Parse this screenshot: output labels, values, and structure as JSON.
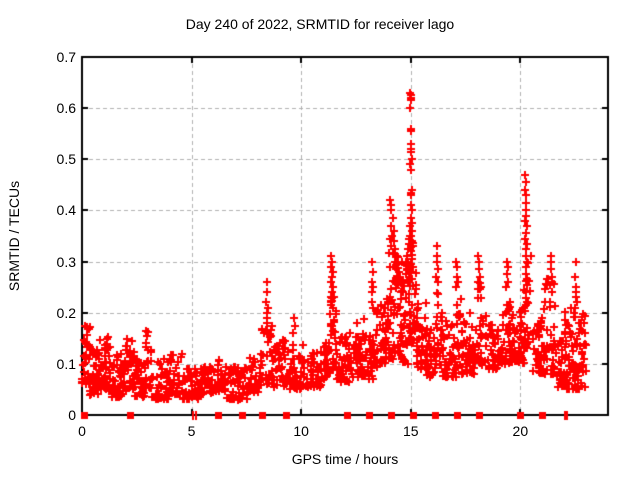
{
  "chart_data": {
    "type": "scatter",
    "title": "Day 240 of 2022, SRMTID for receiver lago",
    "xlabel": "GPS time / hours",
    "ylabel": "SRMTID / TECUs",
    "xlim": [
      0,
      24
    ],
    "ylim": [
      0,
      0.7
    ],
    "xticks": [
      0,
      5,
      10,
      15,
      20
    ],
    "xtick_labels": [
      "0",
      "5",
      "10",
      "15",
      "20"
    ],
    "yticks": [
      0,
      0.1,
      0.2,
      0.3,
      0.4,
      0.5,
      0.6,
      0.7
    ],
    "ytick_labels": [
      "0",
      "0.1",
      "0.2",
      "0.3",
      "0.4",
      "0.5",
      "0.6",
      "0.7"
    ],
    "grid": true,
    "legend": "none",
    "marker": "plus",
    "marker_color": "#ff0000",
    "grid_color": "#b0b0b0",
    "axis_color": "#000000",
    "seed": 2022240,
    "series": [
      {
        "name": "srmtid-dense-band",
        "note": "dense noisy band sampled from envelope segments [x_start,x_end,count,y_low,y_high]",
        "segments": [
          [
            0.0,
            0.35,
            32,
            0.06,
            0.175
          ],
          [
            0.35,
            0.8,
            40,
            0.04,
            0.13
          ],
          [
            0.8,
            1.3,
            45,
            0.05,
            0.16
          ],
          [
            1.3,
            2.0,
            50,
            0.035,
            0.12
          ],
          [
            2.0,
            2.4,
            30,
            0.05,
            0.15
          ],
          [
            2.4,
            2.9,
            35,
            0.035,
            0.11
          ],
          [
            2.9,
            3.2,
            25,
            0.05,
            0.17
          ],
          [
            3.2,
            4.0,
            50,
            0.03,
            0.11
          ],
          [
            4.0,
            4.6,
            38,
            0.04,
            0.12
          ],
          [
            4.6,
            5.3,
            40,
            0.03,
            0.095
          ],
          [
            5.3,
            6.1,
            42,
            0.04,
            0.1
          ],
          [
            6.1,
            6.6,
            30,
            0.045,
            0.115
          ],
          [
            6.6,
            7.6,
            55,
            0.03,
            0.095
          ],
          [
            7.6,
            8.2,
            38,
            0.045,
            0.12
          ],
          [
            8.2,
            8.7,
            30,
            0.06,
            0.18
          ],
          [
            8.7,
            9.4,
            42,
            0.055,
            0.15
          ],
          [
            9.4,
            10.1,
            42,
            0.05,
            0.14
          ],
          [
            10.1,
            10.9,
            48,
            0.055,
            0.125
          ],
          [
            10.9,
            11.3,
            30,
            0.07,
            0.16
          ],
          [
            11.3,
            11.6,
            26,
            0.09,
            0.24
          ],
          [
            11.6,
            12.4,
            52,
            0.065,
            0.16
          ],
          [
            12.4,
            12.9,
            36,
            0.075,
            0.19
          ],
          [
            12.9,
            13.3,
            30,
            0.07,
            0.155
          ],
          [
            13.3,
            13.9,
            42,
            0.09,
            0.22
          ],
          [
            13.9,
            14.55,
            58,
            0.11,
            0.33
          ],
          [
            14.55,
            14.9,
            32,
            0.1,
            0.3
          ],
          [
            14.9,
            15.25,
            36,
            0.14,
            0.35
          ],
          [
            15.25,
            15.7,
            36,
            0.09,
            0.22
          ],
          [
            15.7,
            16.1,
            32,
            0.075,
            0.17
          ],
          [
            16.1,
            16.45,
            26,
            0.09,
            0.25
          ],
          [
            16.45,
            17.05,
            42,
            0.075,
            0.185
          ],
          [
            17.05,
            17.3,
            20,
            0.09,
            0.25
          ],
          [
            17.3,
            18.0,
            46,
            0.08,
            0.2
          ],
          [
            18.0,
            18.25,
            20,
            0.1,
            0.26
          ],
          [
            18.25,
            19.1,
            52,
            0.09,
            0.2
          ],
          [
            19.1,
            19.6,
            36,
            0.1,
            0.27
          ],
          [
            19.6,
            20.15,
            40,
            0.1,
            0.22
          ],
          [
            20.15,
            20.5,
            30,
            0.13,
            0.33
          ],
          [
            20.5,
            21.1,
            42,
            0.08,
            0.2
          ],
          [
            21.1,
            21.6,
            36,
            0.08,
            0.27
          ],
          [
            21.6,
            22.0,
            30,
            0.055,
            0.15
          ],
          [
            22.0,
            22.35,
            32,
            0.05,
            0.23
          ],
          [
            22.35,
            23.0,
            60,
            0.05,
            0.2
          ]
        ]
      },
      {
        "name": "srmtid-peak-points",
        "note": "explicit points of the tall spike columns read off the plot",
        "points": [
          [
            8.43,
            0.26
          ],
          [
            8.45,
            0.24
          ],
          [
            8.41,
            0.22
          ],
          [
            8.47,
            0.21
          ],
          [
            8.44,
            0.2
          ],
          [
            8.46,
            0.19
          ],
          [
            8.42,
            0.18
          ],
          [
            9.68,
            0.19
          ],
          [
            9.72,
            0.175
          ],
          [
            9.65,
            0.16
          ],
          [
            11.38,
            0.31
          ],
          [
            11.42,
            0.3
          ],
          [
            11.35,
            0.29
          ],
          [
            11.44,
            0.28
          ],
          [
            11.4,
            0.27
          ],
          [
            11.37,
            0.26
          ],
          [
            11.45,
            0.25
          ],
          [
            11.41,
            0.24
          ],
          [
            11.36,
            0.22
          ],
          [
            11.43,
            0.21
          ],
          [
            13.22,
            0.3
          ],
          [
            13.27,
            0.28
          ],
          [
            13.24,
            0.26
          ],
          [
            13.29,
            0.25
          ],
          [
            13.25,
            0.24
          ],
          [
            13.21,
            0.22
          ],
          [
            13.28,
            0.21
          ],
          [
            14.05,
            0.42
          ],
          [
            14.12,
            0.41
          ],
          [
            14.08,
            0.4
          ],
          [
            14.18,
            0.385
          ],
          [
            14.1,
            0.37
          ],
          [
            14.22,
            0.36
          ],
          [
            14.15,
            0.35
          ],
          [
            14.05,
            0.345
          ],
          [
            14.25,
            0.34
          ],
          [
            14.12,
            0.33
          ],
          [
            14.3,
            0.325
          ],
          [
            14.2,
            0.315
          ],
          [
            14.35,
            0.31
          ],
          [
            14.28,
            0.3
          ],
          [
            14.4,
            0.295
          ],
          [
            14.33,
            0.285
          ],
          [
            14.45,
            0.28
          ],
          [
            14.38,
            0.27
          ],
          [
            14.5,
            0.265
          ],
          [
            14.42,
            0.255
          ],
          [
            14.97,
            0.63
          ],
          [
            15.0,
            0.625
          ],
          [
            14.99,
            0.62
          ],
          [
            15.02,
            0.615
          ],
          [
            14.98,
            0.6
          ],
          [
            15.01,
            0.56
          ],
          [
            15.03,
            0.555
          ],
          [
            14.99,
            0.53
          ],
          [
            15.02,
            0.52
          ],
          [
            15.0,
            0.515
          ],
          [
            15.04,
            0.5
          ],
          [
            14.98,
            0.49
          ],
          [
            15.01,
            0.48
          ],
          [
            15.05,
            0.44
          ],
          [
            15.02,
            0.435
          ],
          [
            14.99,
            0.43
          ],
          [
            15.03,
            0.41
          ],
          [
            15.06,
            0.4
          ],
          [
            15.0,
            0.385
          ],
          [
            15.04,
            0.375
          ],
          [
            14.96,
            0.37
          ],
          [
            15.07,
            0.36
          ],
          [
            15.01,
            0.35
          ],
          [
            14.93,
            0.345
          ],
          [
            15.05,
            0.34
          ],
          [
            14.9,
            0.335
          ],
          [
            15.08,
            0.33
          ],
          [
            14.87,
            0.325
          ],
          [
            15.03,
            0.32
          ],
          [
            14.84,
            0.31
          ],
          [
            15.06,
            0.305
          ],
          [
            14.8,
            0.3
          ],
          [
            14.88,
            0.295
          ],
          [
            15.09,
            0.29
          ],
          [
            14.83,
            0.285
          ],
          [
            15.02,
            0.28
          ],
          [
            14.78,
            0.275
          ],
          [
            14.91,
            0.27
          ],
          [
            15.07,
            0.265
          ],
          [
            14.86,
            0.26
          ],
          [
            16.18,
            0.33
          ],
          [
            16.22,
            0.31
          ],
          [
            16.2,
            0.3
          ],
          [
            16.25,
            0.285
          ],
          [
            16.17,
            0.27
          ],
          [
            16.23,
            0.26
          ],
          [
            17.08,
            0.3
          ],
          [
            17.12,
            0.29
          ],
          [
            17.1,
            0.27
          ],
          [
            17.15,
            0.26
          ],
          [
            17.07,
            0.25
          ],
          [
            18.08,
            0.31
          ],
          [
            18.12,
            0.3
          ],
          [
            18.1,
            0.285
          ],
          [
            18.15,
            0.27
          ],
          [
            18.07,
            0.26
          ],
          [
            19.38,
            0.3
          ],
          [
            19.42,
            0.29
          ],
          [
            19.4,
            0.275
          ],
          [
            19.45,
            0.26
          ],
          [
            19.36,
            0.25
          ],
          [
            20.22,
            0.47
          ],
          [
            20.25,
            0.455
          ],
          [
            20.23,
            0.44
          ],
          [
            20.27,
            0.43
          ],
          [
            20.24,
            0.415
          ],
          [
            20.28,
            0.4
          ],
          [
            20.25,
            0.39
          ],
          [
            20.22,
            0.38
          ],
          [
            20.29,
            0.37
          ],
          [
            20.26,
            0.355
          ],
          [
            20.23,
            0.345
          ],
          [
            20.3,
            0.335
          ],
          [
            20.27,
            0.325
          ],
          [
            20.24,
            0.31
          ],
          [
            20.31,
            0.3
          ],
          [
            20.28,
            0.29
          ],
          [
            20.25,
            0.275
          ],
          [
            20.32,
            0.265
          ],
          [
            20.29,
            0.255
          ],
          [
            21.38,
            0.31
          ],
          [
            21.42,
            0.3
          ],
          [
            21.4,
            0.285
          ],
          [
            21.45,
            0.27
          ],
          [
            21.37,
            0.255
          ],
          [
            21.43,
            0.24
          ],
          [
            22.52,
            0.3
          ],
          [
            22.5,
            0.27
          ],
          [
            22.55,
            0.25
          ],
          [
            22.56,
            0.24
          ],
          [
            22.54,
            0.23
          ],
          [
            22.58,
            0.22
          ],
          [
            22.51,
            0.21
          ]
        ]
      },
      {
        "name": "zero-line-squares",
        "note": "filled red squares sitting on y=0 axis",
        "x": [
          0.1,
          2.2,
          6.2,
          7.3,
          8.2,
          9.3,
          12.1,
          13.1,
          14.1,
          15.1,
          16.1,
          17.1,
          18.1,
          20.0,
          21.0
        ]
      },
      {
        "name": "zero-line-double-bars",
        "note": "pairs of thin vertical bars crossing y=0 axis",
        "x": [
          5.08,
          5.18,
          22.05,
          22.15
        ]
      }
    ]
  }
}
